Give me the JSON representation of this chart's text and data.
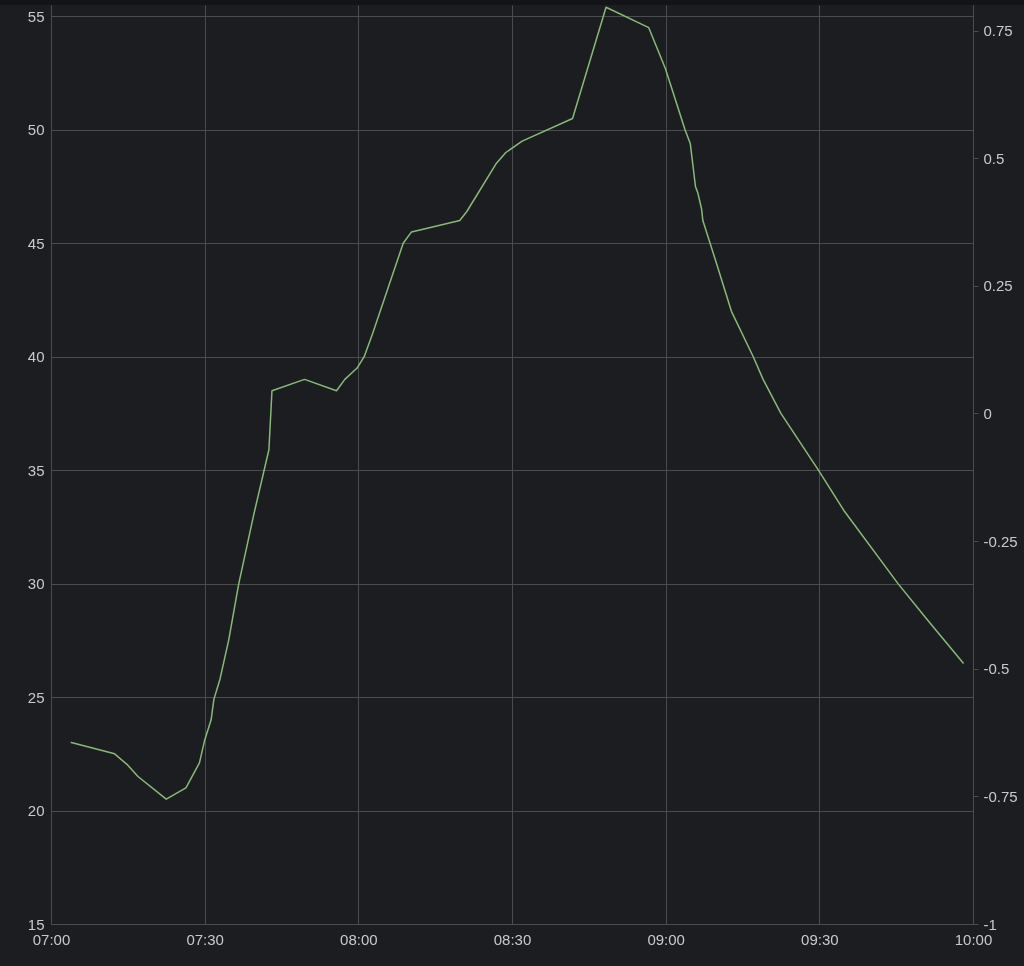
{
  "chart_data": {
    "type": "line",
    "x": [
      7.066,
      7.207,
      7.25,
      7.283,
      7.375,
      7.439,
      7.483,
      7.5,
      7.521,
      7.53,
      7.55,
      7.578,
      7.611,
      7.659,
      7.709,
      7.719,
      7.825,
      7.929,
      7.956,
      7.996,
      8.019,
      8.046,
      8.146,
      8.173,
      8.33,
      8.353,
      8.448,
      8.48,
      8.533,
      8.697,
      8.806,
      8.945,
      8.999,
      9.063,
      9.08,
      9.097,
      9.105,
      9.117,
      9.121,
      9.168,
      9.214,
      9.285,
      9.317,
      9.375,
      9.497,
      9.581,
      9.756,
      9.846,
      9.968
    ],
    "series": [
      {
        "color": "#8ab87a",
        "values": [
          23.0,
          22.5,
          22.0,
          21.5,
          20.5,
          21.0,
          22.1,
          23.1,
          24.0,
          24.9,
          25.8,
          27.5,
          30.0,
          33.0,
          35.9,
          38.5,
          39.0,
          38.5,
          39.0,
          39.5,
          40.0,
          41.0,
          45.0,
          45.5,
          46.0,
          46.4,
          48.5,
          49.0,
          49.5,
          50.5,
          55.4,
          54.5,
          52.7,
          50.0,
          49.4,
          47.5,
          47.2,
          46.5,
          46.0,
          44.0,
          42.0,
          40.0,
          39.0,
          37.5,
          35.0,
          33.2,
          30.0,
          28.5,
          26.5
        ]
      }
    ],
    "xlim": [
      7,
      10
    ],
    "xticks": [
      {
        "value": 7,
        "label": "07:00"
      },
      {
        "value": 7.5,
        "label": "07:30"
      },
      {
        "value": 8,
        "label": "08:00"
      },
      {
        "value": 8.5,
        "label": "08:30"
      },
      {
        "value": 9,
        "label": "09:00"
      },
      {
        "value": 9.5,
        "label": "09:30"
      },
      {
        "value": 10,
        "label": "10:00"
      }
    ],
    "ylim": [
      15,
      55.5
    ],
    "yticks": [
      15,
      20,
      25,
      30,
      35,
      40,
      45,
      50,
      55
    ],
    "y2lim": [
      -1,
      0.8
    ],
    "y2ticks": [
      -1,
      -0.75,
      -0.5,
      -0.25,
      0,
      0.25,
      0.5,
      0.75
    ],
    "grid": true,
    "line_style": "solid"
  }
}
